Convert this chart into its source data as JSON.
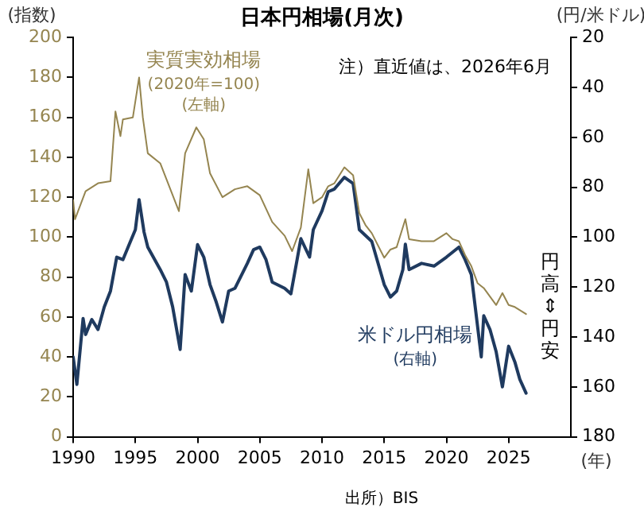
{
  "chart_data": {
    "type": "line",
    "title": "日本円相場(月次)",
    "ylabel": "(指数)",
    "y2label": "(円/米ドル)",
    "xlabel": "(年)",
    "xlim": [
      1990,
      2030
    ],
    "xticks": [
      1990,
      1995,
      2000,
      2005,
      2010,
      2015,
      2020,
      2025
    ],
    "ylim": [
      0,
      200
    ],
    "yticks": [
      0,
      20,
      40,
      60,
      80,
      100,
      120,
      140,
      160,
      180,
      200
    ],
    "y2lim": [
      180,
      20
    ],
    "y2ticks": [
      20,
      40,
      60,
      80,
      100,
      120,
      140,
      160,
      180
    ],
    "grid": false,
    "legend": false,
    "marker": "none",
    "line_style": "solid",
    "annotations": [
      "注）直近値は、2026年6月",
      "円高⇕円安",
      "出所）BIS"
    ],
    "series": [
      {
        "name": "実質実効相場\n(2020年=100)\n(左軸)",
        "color": "#958550",
        "axis": "y",
        "x": [
          1990,
          1990.15,
          1991,
          1992,
          1993,
          1993.4,
          1993.8,
          1994,
          1994.8,
          1995.3,
          1995.6,
          1996,
          1997,
          1998.5,
          1999,
          1999.9,
          2000.5,
          2001,
          2002,
          2003,
          2004,
          2005,
          2006,
          2007,
          2007.6,
          2008.3,
          2008.9,
          2009.3,
          2010,
          2010.5,
          2011,
          2011.8,
          2012.5,
          2013,
          2013.5,
          2014,
          2015,
          2015.5,
          2016,
          2016.7,
          2017,
          2018,
          2019,
          2020,
          2020.5,
          2021,
          2021.5,
          2022,
          2022.5,
          2023,
          2024,
          2024.5,
          2025,
          2025.5,
          2026.4
        ],
        "values": [
          118.6,
          109,
          123,
          127,
          128,
          163,
          150.6,
          159,
          160,
          180,
          160,
          142,
          137,
          113,
          142,
          155,
          149,
          132,
          120,
          124,
          125.5,
          121,
          107.6,
          100.7,
          93,
          104.8,
          134,
          117,
          120,
          125.5,
          127,
          135,
          131,
          112,
          106,
          102,
          89.7,
          93.8,
          95,
          109,
          99,
          98,
          98,
          102,
          99,
          98,
          91,
          85.5,
          77,
          74.5,
          66,
          72,
          66,
          65,
          61.5
        ]
      },
      {
        "name": "米ドル円相場\n(右軸)",
        "color": "#1f3a5f",
        "axis": "y2",
        "x": [
          1990,
          1990.3,
          1990.8,
          1991,
          1991.5,
          1992,
          1992.5,
          1993,
          1993.5,
          1994,
          1994.5,
          1995,
          1995.3,
          1995.7,
          1996,
          1997,
          1997.5,
          1998,
          1998.6,
          1999,
          1999.5,
          2000,
          2000.5,
          2001,
          2001.5,
          2002,
          2002.5,
          2003,
          2004,
          2004.5,
          2005,
          2005.5,
          2006,
          2007,
          2007.5,
          2008,
          2008.3,
          2009,
          2009.3,
          2010,
          2010.5,
          2011,
          2011.8,
          2012.5,
          2013,
          2014,
          2015,
          2015.5,
          2016,
          2016.5,
          2016.7,
          2017,
          2018,
          2019,
          2020,
          2021,
          2021.5,
          2022,
          2022.8,
          2023,
          2023.5,
          2024,
          2024.5,
          2025,
          2025.5,
          2025.9,
          2026.4
        ],
        "values": [
          148,
          159,
          132.6,
          139,
          133,
          137,
          128,
          121.6,
          108,
          109,
          103,
          97,
          85,
          98,
          104,
          113,
          118,
          128,
          145,
          115,
          121.6,
          103,
          108,
          119,
          126,
          134,
          121.6,
          120.5,
          110.5,
          105,
          104,
          109,
          118,
          120.5,
          122.7,
          109,
          100.6,
          108,
          97,
          89.5,
          81.8,
          80.7,
          76,
          78.5,
          97,
          101.7,
          119,
          124,
          121.6,
          113,
          102.8,
          113,
          110.5,
          111.6,
          108,
          104,
          109,
          115,
          148,
          131.5,
          137,
          146,
          160,
          143.7,
          150,
          157,
          162.5
        ]
      }
    ]
  }
}
